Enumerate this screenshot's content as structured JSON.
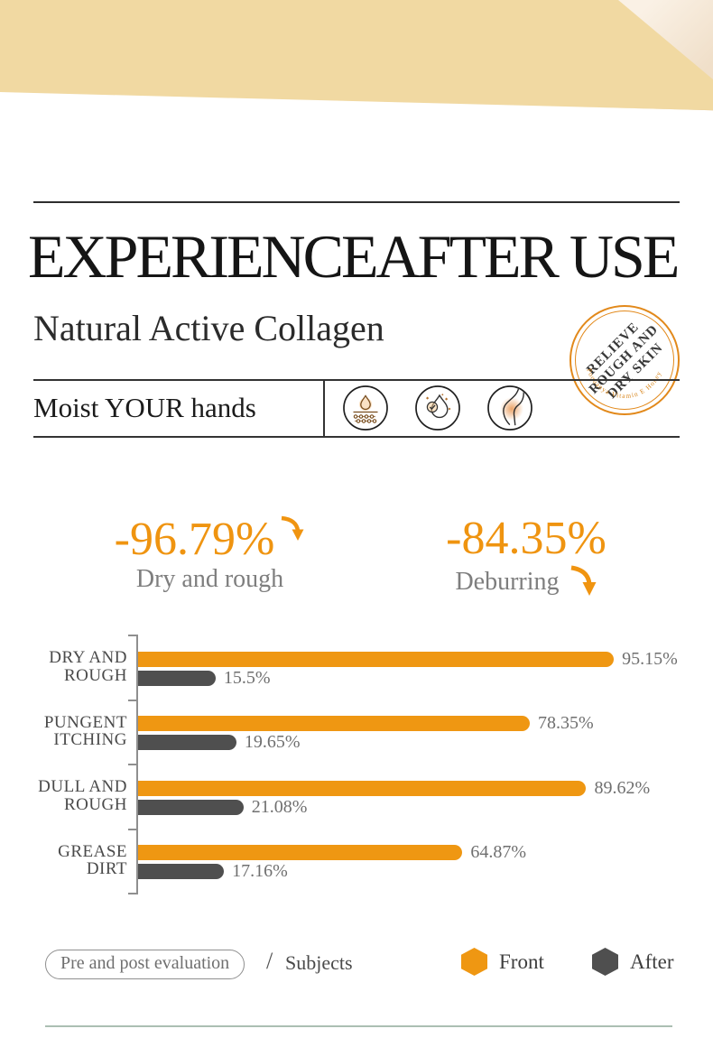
{
  "banner": {
    "color": "#F1D9A2",
    "edge_color": "#E8C88E",
    "skin_corner_colors": [
      "#FAF1E5",
      "#F0DFC9"
    ]
  },
  "header": {
    "title": "EXPERIENCEAFTER USE",
    "subtitle": "Natural Active Collagen",
    "tagline": "Moist YOUR hands",
    "feature_icons": [
      "skin-moisture-icon",
      "droplet-check-icon",
      "elbow-soothe-icon"
    ],
    "stamp": {
      "line1": "RELIEVE",
      "line2": "ROUGH AND",
      "line3": "DRY SKIN",
      "arc_text": "Poquanya Vitamin E Honey Body",
      "ring_color": "#E2891B"
    }
  },
  "stats": [
    {
      "value": "-96.79%",
      "label": "Dry and rough"
    },
    {
      "value": "-84.35%",
      "label": "Deburring"
    }
  ],
  "accent_orange": "#EF9712",
  "bar_gray": "#4F4F4F",
  "chart_data": {
    "type": "bar",
    "orientation": "horizontal",
    "categories": [
      [
        "DRY AND",
        "ROUGH"
      ],
      [
        "PUNGENT",
        "ITCHING"
      ],
      [
        "DULL AND",
        "ROUGH"
      ],
      [
        "GREASE",
        "DIRT"
      ]
    ],
    "series": [
      {
        "name": "Front",
        "color": "#EF9712",
        "values": [
          95.15,
          78.35,
          89.62,
          64.87
        ],
        "labels": [
          "95.15%",
          "78.35%",
          "89.62%",
          "64.87%"
        ]
      },
      {
        "name": "After",
        "color": "#4F4F4F",
        "values": [
          15.5,
          19.65,
          21.08,
          17.16
        ],
        "labels": [
          "15.5%",
          "19.65%",
          "21.08%",
          "17.16%"
        ]
      }
    ],
    "xlim": [
      0,
      100
    ],
    "value_suffix": "%",
    "legend_position": "bottom-right",
    "grid": false
  },
  "footer": {
    "pill_label": "Pre and post evaluation",
    "separator": "/",
    "subjects_label": "Subjects",
    "legend": [
      {
        "label": "Front",
        "color": "#EF9712"
      },
      {
        "label": "After",
        "color": "#4F4F4F"
      }
    ],
    "bottom_line_color": "#ABBFB3"
  }
}
